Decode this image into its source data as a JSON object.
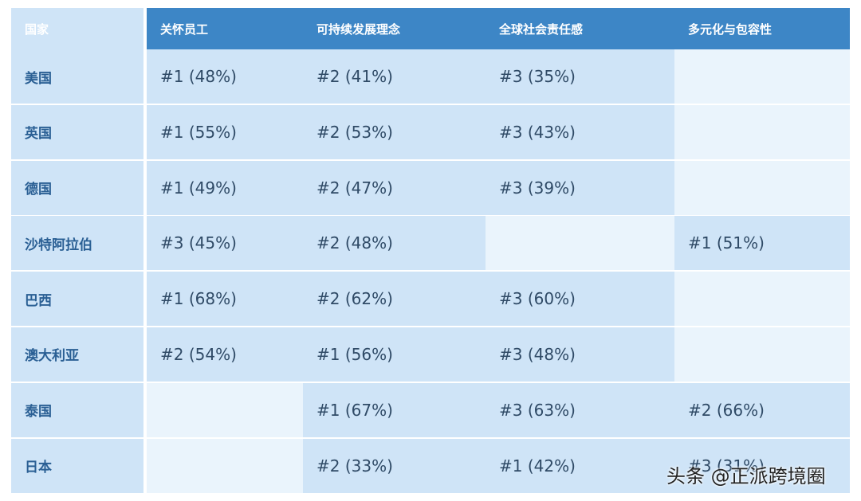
{
  "header": {
    "country": "国家",
    "col1": "关怀员工",
    "col2": "可持续发展理念",
    "col3": "全球社会责任感",
    "col4": "多元化与包容性"
  },
  "rows": [
    {
      "country": "美国",
      "c1": "#1 (48%)",
      "c2": "#2 (41%)",
      "c3": "#3 (35%)",
      "c4": ""
    },
    {
      "country": "英国",
      "c1": "#1 (55%)",
      "c2": "#2 (53%)",
      "c3": "#3 (43%)",
      "c4": ""
    },
    {
      "country": "德国",
      "c1": "#1 (49%)",
      "c2": "#2 (47%)",
      "c3": "#3 (39%)",
      "c4": ""
    },
    {
      "country": "沙特阿拉伯",
      "c1": "#3 (45%)",
      "c2": "#2 (48%)",
      "c3": "",
      "c4": "#1 (51%)"
    },
    {
      "country": "巴西",
      "c1": "#1 (68%)",
      "c2": "#2 (62%)",
      "c3": "#3 (60%)",
      "c4": ""
    },
    {
      "country": "澳大利亚",
      "c1": "#2 (54%)",
      "c2": "#1 (56%)",
      "c3": "#3 (48%)",
      "c4": ""
    },
    {
      "country": "泰国",
      "c1": "",
      "c2": "#1 (67%)",
      "c3": "#3 (63%)",
      "c4": "#2 (66%)"
    },
    {
      "country": "日本",
      "c1": "",
      "c2": "#2 (33%)",
      "c3": "#1 (42%)",
      "c4": "#3 (31%)"
    }
  ],
  "watermark": "头条 @正派跨境圈",
  "colors": {
    "header_dark": "#2a5f94",
    "header": "#3d86c6",
    "cell_filled": "#cfe4f7",
    "cell_empty": "#eaf4fc"
  }
}
